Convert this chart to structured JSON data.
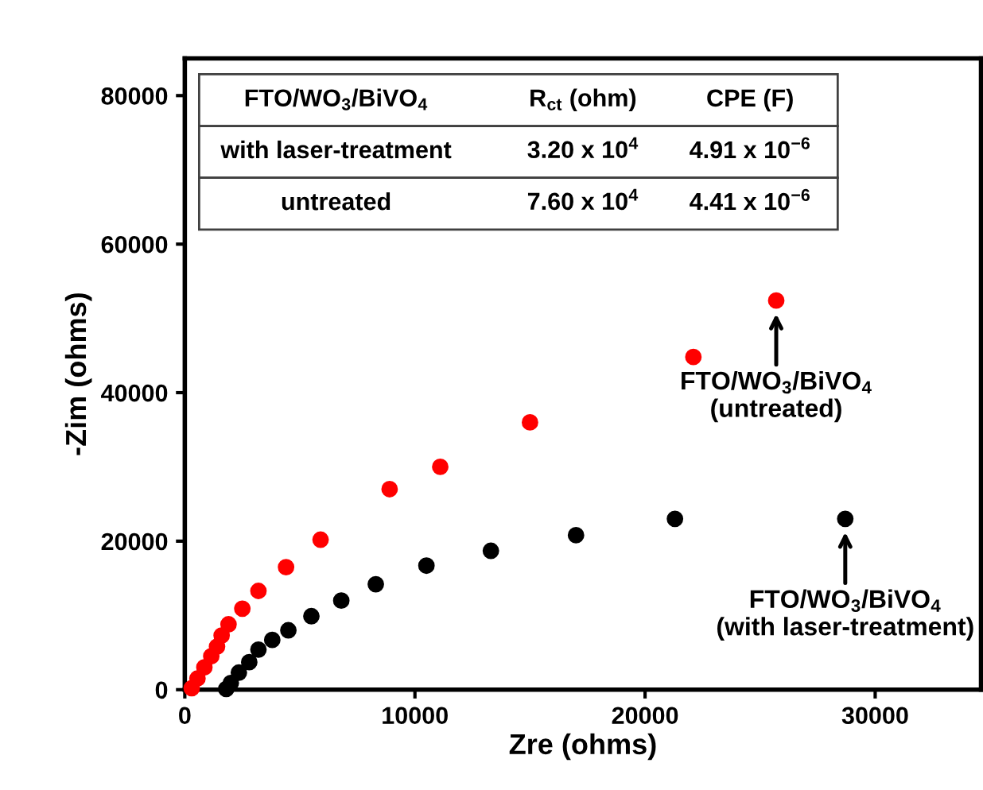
{
  "chart_data": {
    "type": "scatter",
    "xlabel": "Zre (ohms)",
    "ylabel": "-Zim (ohms)",
    "xlim": [
      0,
      34600
    ],
    "ylim": [
      0,
      85000
    ],
    "xticks": [
      0,
      10000,
      20000,
      30000
    ],
    "yticks": [
      0,
      20000,
      40000,
      60000,
      80000
    ],
    "grid": false,
    "legend": false,
    "marker": "circle",
    "series": [
      {
        "color": "#ff0000",
        "x": [
          300,
          550,
          850,
          1150,
          1400,
          1600,
          1900,
          2500,
          3200,
          4400,
          5900,
          8900,
          11100,
          15000,
          22100,
          25700
        ],
        "values": [
          200,
          1500,
          3000,
          4500,
          5800,
          7300,
          8800,
          10900,
          13300,
          16500,
          20200,
          27000,
          30000,
          36000,
          44800,
          52400
        ]
      },
      {
        "color": "#000000",
        "x": [
          1800,
          2000,
          2350,
          2800,
          3200,
          3800,
          4500,
          5500,
          6800,
          8300,
          10500,
          13300,
          17000,
          21300,
          28700
        ],
        "values": [
          100,
          900,
          2300,
          3700,
          5400,
          6700,
          8000,
          9900,
          12000,
          14200,
          16700,
          18700,
          20800,
          23000,
          23000
        ]
      }
    ],
    "annotations": [
      "FTO/WO$_{3}$/BiVO$_{4}$",
      "R$_{ct}$ (ohm)",
      "CPE (F)",
      "with laser-treatment",
      "3.20 x 10$^{4}$",
      "4.91 x 10$^{−6}$",
      "untreated",
      "7.60 x 10$^{4}$",
      "4.41 x 10$^{−6}$",
      {
        "text": "FTO/WO$_{3}$/BiVO$_{4}$\n(untreated)",
        "x": 25700,
        "y": 52400
      },
      {
        "text": "FTO/WO$_{3}$/BiVO$_{4}$\n(with laser-treatment)",
        "x": 28700,
        "y": 23000
      }
    ]
  }
}
